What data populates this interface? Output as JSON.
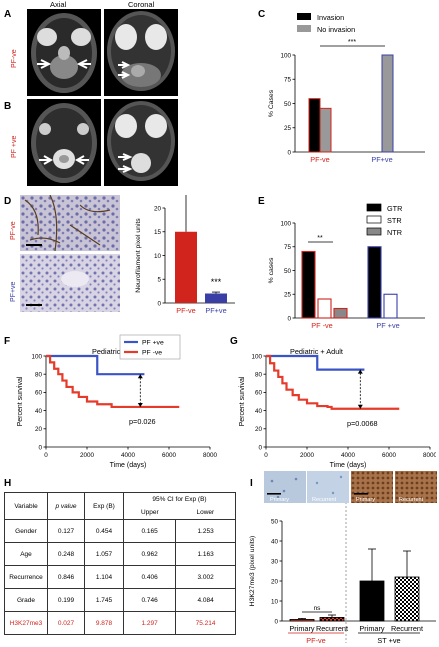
{
  "panels": {
    "A": "A",
    "B": "B",
    "C": "C",
    "D": "D",
    "E": "E",
    "F": "F",
    "G": "G",
    "H": "H",
    "I": "I"
  },
  "mri": {
    "axial": "Axial",
    "coronal": "Coronal",
    "row_a": "PF-ve",
    "row_b": "PF +ve"
  },
  "panel_c": {
    "legend": [
      "Invasion",
      "No invasion"
    ],
    "ylabel": "% Cases",
    "yticks": [
      "0",
      "25",
      "50",
      "75",
      "100"
    ],
    "xticks": [
      "PF-ve",
      "PF+ve"
    ],
    "sig": "***",
    "colors": {
      "invasion": "#000000",
      "no_invasion": "#999999",
      "red": "#d0241c",
      "blue": "#3a3fa8"
    }
  },
  "panel_d": {
    "row_top": "PF-ve",
    "row_bottom": "PF+ve",
    "ylabel": "Neurofilament pixel units",
    "yticks": [
      "0",
      "5",
      "10",
      "15",
      "20"
    ],
    "xticks": [
      "PF-ve",
      "PF+ve"
    ],
    "sig": "***"
  },
  "panel_e": {
    "legend": [
      "GTR",
      "STR",
      "NTR"
    ],
    "ylabel": "% cases",
    "yticks": [
      "0",
      "25",
      "50",
      "75",
      "100"
    ],
    "xticks": [
      "PF -ve",
      "PF +ve"
    ],
    "sig": "**"
  },
  "panel_f": {
    "legend": [
      "PF +ve",
      "PF -ve"
    ],
    "title": "Pediatric",
    "ylabel": "Percent survival",
    "xlabel": "Time (days)",
    "yticks": [
      "0",
      "20",
      "40",
      "60",
      "80",
      "100"
    ],
    "xticks": [
      "0",
      "2000",
      "4000",
      "6000",
      "8000"
    ],
    "pvalue": "p=0.026"
  },
  "panel_g": {
    "title": "Pediatric + Adult",
    "ylabel": "Percent survival",
    "xlabel": "Time (days)",
    "yticks": [
      "0",
      "20",
      "40",
      "60",
      "80",
      "100"
    ],
    "xticks": [
      "0",
      "2000",
      "4000",
      "6000",
      "8000"
    ],
    "pvalue": "p=0.0068"
  },
  "panel_h": {
    "headers": [
      "Variable",
      "p value",
      "Exp (B)",
      "95% CI for Exp (B)",
      "Upper",
      "Lower"
    ],
    "rows": [
      [
        "Gender",
        "0.127",
        "0.454",
        "0.165",
        "1.253"
      ],
      [
        "Age",
        "0.248",
        "1.057",
        "0.962",
        "1.163"
      ],
      [
        "Recurrence",
        "0.846",
        "1.104",
        "0.406",
        "3.002"
      ],
      [
        "Grade",
        "0.199",
        "1.745",
        "0.746",
        "4.084"
      ],
      [
        "H3K27me3",
        "0.027",
        "9.878",
        "1.297",
        "75.214"
      ]
    ]
  },
  "panel_i": {
    "img_labels": [
      "Primary",
      "Recurrent",
      "Primary",
      "Recurrent"
    ],
    "ylabel": "H3K27me3 (pixel units)",
    "yticks": [
      "0",
      "10",
      "20",
      "30",
      "40",
      "50"
    ],
    "xticks": [
      "Primary",
      "Recurrent",
      "Primary",
      "Recurrent"
    ],
    "groups": [
      "PF-ve",
      "ST +ve"
    ],
    "sig": "ns"
  },
  "chart_data": [
    {
      "type": "bar",
      "panel": "C",
      "categories": [
        "PF-ve",
        "PF+ve"
      ],
      "series": [
        {
          "name": "Invasion",
          "values": [
            55,
            0
          ]
        },
        {
          "name": "No invasion",
          "values": [
            45,
            100
          ]
        }
      ],
      "ylabel": "% Cases",
      "ylim": [
        0,
        100
      ],
      "annotation": "***"
    },
    {
      "type": "bar",
      "panel": "D",
      "categories": [
        "PF-ve",
        "PF+ve"
      ],
      "values": [
        15,
        2
      ],
      "errors": [
        8.5,
        0.3
      ],
      "ylabel": "Neurofilament pixel units",
      "ylim": [
        0,
        20
      ],
      "annotation": "***"
    },
    {
      "type": "bar",
      "panel": "E",
      "categories": [
        "PF -ve",
        "PF +ve"
      ],
      "series": [
        {
          "name": "GTR",
          "values": [
            70,
            75
          ]
        },
        {
          "name": "STR",
          "values": [
            20,
            25
          ]
        },
        {
          "name": "NTR",
          "values": [
            10,
            0
          ]
        }
      ],
      "ylabel": "% cases",
      "ylim": [
        0,
        100
      ],
      "annotation": "**"
    },
    {
      "type": "line",
      "panel": "F",
      "title": "Pediatric",
      "xlabel": "Time (days)",
      "ylabel": "Percent survival",
      "xlim": [
        0,
        8000
      ],
      "ylim": [
        0,
        100
      ],
      "series": [
        {
          "name": "PF +ve",
          "x": [
            0,
            2500,
            2500,
            4800
          ],
          "y": [
            100,
            100,
            80,
            80
          ]
        },
        {
          "name": "PF -ve",
          "x": [
            0,
            200,
            400,
            600,
            800,
            1000,
            1300,
            1600,
            2000,
            2500,
            3000,
            3200,
            4000,
            5000,
            6500
          ],
          "y": [
            100,
            93,
            86,
            80,
            73,
            66,
            60,
            55,
            50,
            47,
            47,
            44,
            44,
            44,
            44
          ]
        }
      ],
      "annotation": "p=0.026"
    },
    {
      "type": "line",
      "panel": "G",
      "title": "Pediatric + Adult",
      "xlabel": "Time (days)",
      "ylabel": "Percent survival",
      "xlim": [
        0,
        8000
      ],
      "ylim": [
        0,
        100
      ],
      "series": [
        {
          "name": "PF +ve",
          "x": [
            0,
            2500,
            2500,
            4800
          ],
          "y": [
            100,
            100,
            85,
            85
          ]
        },
        {
          "name": "PF -ve",
          "x": [
            0,
            200,
            400,
            600,
            800,
            1000,
            1300,
            1600,
            2000,
            2500,
            3000,
            3200,
            4000,
            5000,
            6500
          ],
          "y": [
            100,
            92,
            84,
            77,
            70,
            63,
            57,
            52,
            48,
            45,
            44,
            42,
            42,
            42,
            42
          ]
        }
      ],
      "annotation": "p=0.0068"
    },
    {
      "type": "bar",
      "panel": "I",
      "categories": [
        "Primary",
        "Recurrent",
        "Primary",
        "Recurrent"
      ],
      "values": [
        0.8,
        1.8,
        20,
        22
      ],
      "errors": [
        0.5,
        1.2,
        16,
        13
      ],
      "groups": [
        "PF-ve",
        "PF-ve",
        "ST +ve",
        "ST +ve"
      ],
      "ylabel": "H3K27me3 (pixel units)",
      "ylim": [
        0,
        50
      ],
      "annotation": "ns"
    }
  ]
}
